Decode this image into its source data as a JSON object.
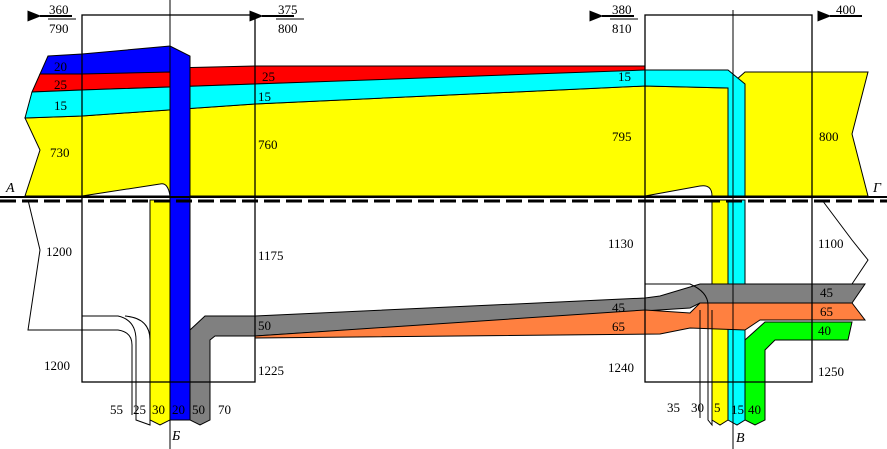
{
  "colors": {
    "yellow": "#ffff00",
    "red": "#ff0000",
    "blue": "#0000ff",
    "cyan": "#00ffff",
    "gray": "#808080",
    "orange": "#ff8040",
    "green": "#00ff00",
    "white": "#ffffff"
  },
  "section_labels": {
    "a": "А",
    "g": "Г",
    "b": "Б",
    "v": "В"
  },
  "arrows": {
    "a1_top": "360",
    "a1_bottom": "790",
    "a2_top": "375",
    "a2_bottom": "800",
    "a3_top": "380",
    "a3_bottom": "810",
    "a4_top": "400"
  },
  "top_flows": {
    "blue_left": "20",
    "red_left": "25",
    "cyan_left": "15",
    "yellow_left": "730",
    "red_mid": "25",
    "cyan_mid": "15",
    "yellow_mid": "760",
    "cyan_right": "15",
    "yellow_right": "795",
    "yellow_far_right": "800"
  },
  "bottom_flows": {
    "white_left_in": "1200",
    "white_left_mid": "1175",
    "white_left_low": "1200",
    "gray_mid": "50",
    "white_left_out": "1225",
    "gray_right": "45",
    "orange_right": "65",
    "white_right_in": "1130",
    "white_right_low": "1240",
    "white_far_right": "1100",
    "gray_far": "45",
    "orange_far": "65",
    "green_far": "40",
    "white_far_low": "1250"
  },
  "exits_b": {
    "white": "55",
    "white2": "25",
    "yellow": "30",
    "blue": "20",
    "gray": "50",
    "extra": "70"
  },
  "exits_v": {
    "white": "35",
    "yellow": "30",
    "cyan_a": "5",
    "cyan_b": "15",
    "green": "40"
  }
}
